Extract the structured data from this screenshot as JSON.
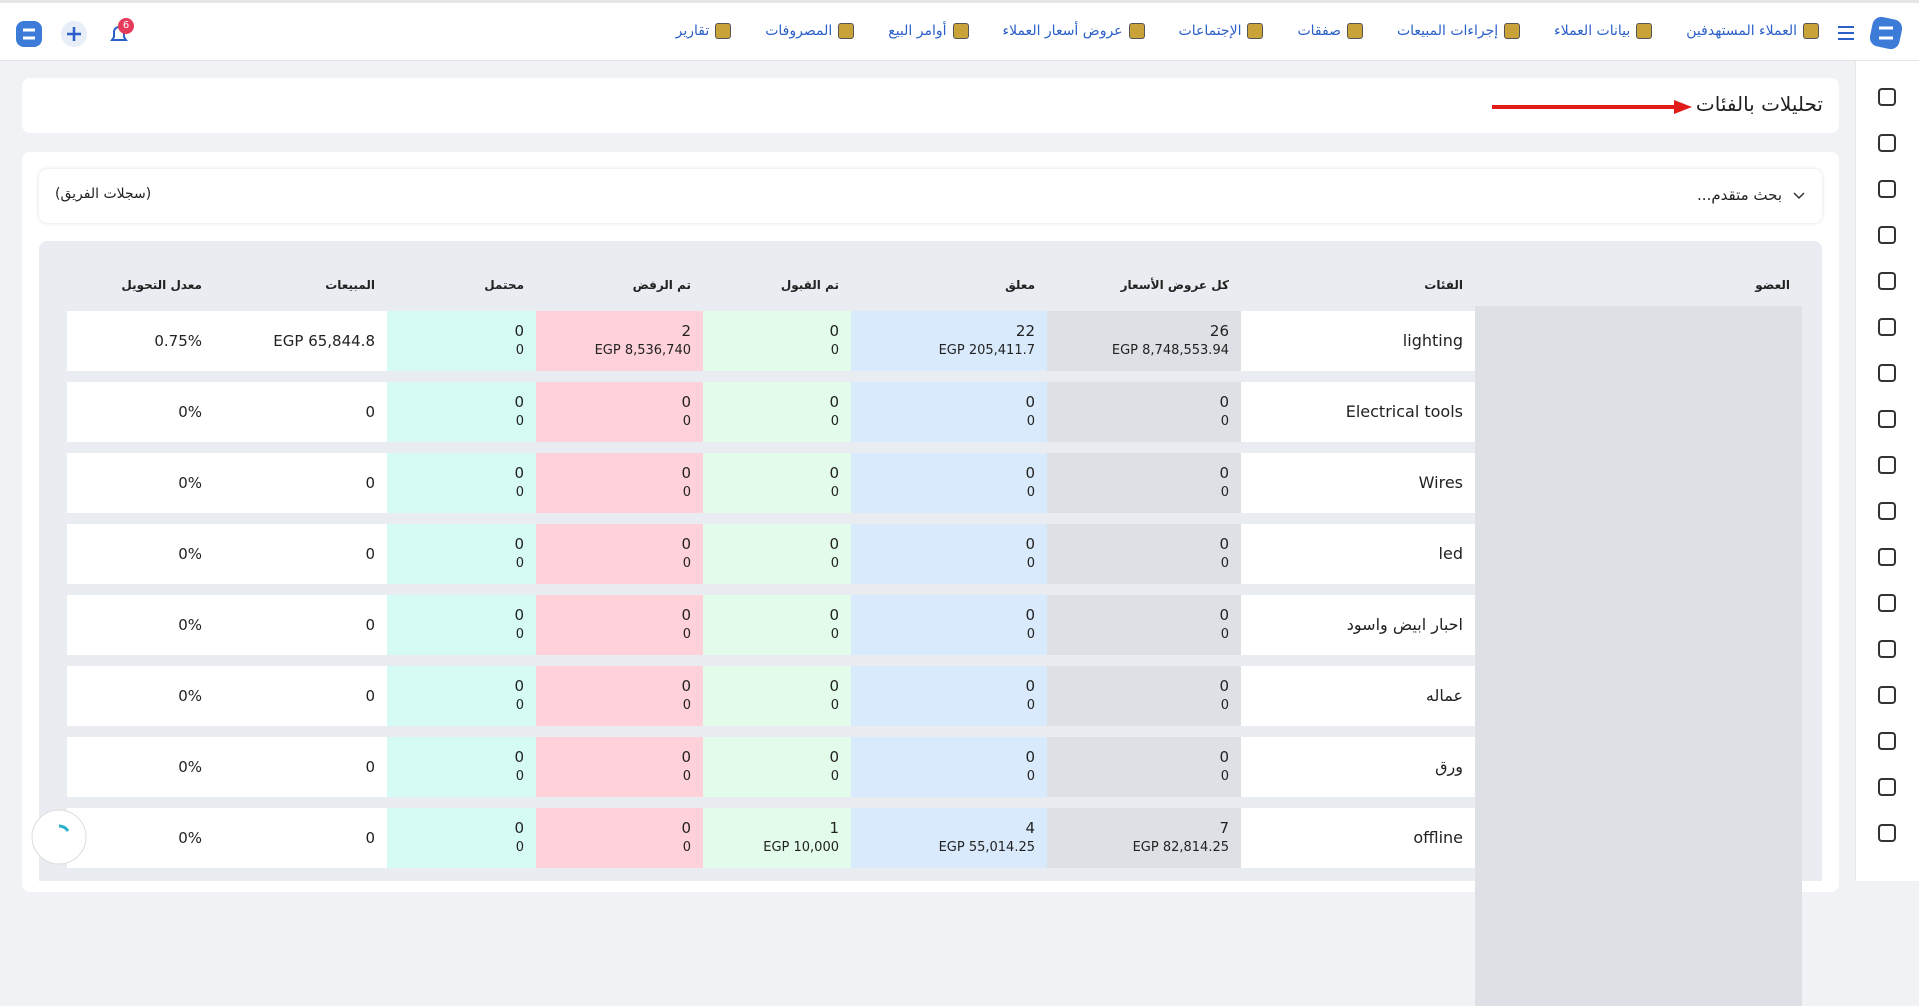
{
  "nav": {
    "items": [
      "العملاء المستهدفين",
      "بيانات العملاء",
      "إجراءات المبيعات",
      "صفقات",
      "الإجتماعات",
      "عروض أسعار العملاء",
      "أوامر البيع",
      "المصروفات",
      "تقارير"
    ],
    "badge": "6"
  },
  "header": {
    "title": "تحليلات بالفئات"
  },
  "search": {
    "label": "بحث متقدم...",
    "scope": "(سجلات الفريق)"
  },
  "table": {
    "headers": [
      "العضو",
      "الفئات",
      "كل عروض الأسعار",
      "معلق",
      "تم القبول",
      "تم الرفض",
      "محتمل",
      "المبيعات",
      "معدل التحويل"
    ],
    "rows": [
      {
        "category": "lighting",
        "all_quotes": [
          "26",
          "EGP 8,748,553.94"
        ],
        "pending": [
          "22",
          "EGP 205,411.7"
        ],
        "accepted": [
          "0",
          "0"
        ],
        "rejected": [
          "2",
          "EGP 8,536,740"
        ],
        "potential": [
          "0",
          "0"
        ],
        "sales": "EGP 65,844.8",
        "conversion": "0.75%"
      },
      {
        "category": "Electrical tools",
        "all_quotes": [
          "0",
          "0"
        ],
        "pending": [
          "0",
          "0"
        ],
        "accepted": [
          "0",
          "0"
        ],
        "rejected": [
          "0",
          "0"
        ],
        "potential": [
          "0",
          "0"
        ],
        "sales": "0",
        "conversion": "0%"
      },
      {
        "category": "Wires",
        "all_quotes": [
          "0",
          "0"
        ],
        "pending": [
          "0",
          "0"
        ],
        "accepted": [
          "0",
          "0"
        ],
        "rejected": [
          "0",
          "0"
        ],
        "potential": [
          "0",
          "0"
        ],
        "sales": "0",
        "conversion": "0%"
      },
      {
        "category": "led",
        "all_quotes": [
          "0",
          "0"
        ],
        "pending": [
          "0",
          "0"
        ],
        "accepted": [
          "0",
          "0"
        ],
        "rejected": [
          "0",
          "0"
        ],
        "potential": [
          "0",
          "0"
        ],
        "sales": "0",
        "conversion": "0%"
      },
      {
        "category": "احبار ابيض واسود",
        "all_quotes": [
          "0",
          "0"
        ],
        "pending": [
          "0",
          "0"
        ],
        "accepted": [
          "0",
          "0"
        ],
        "rejected": [
          "0",
          "0"
        ],
        "potential": [
          "0",
          "0"
        ],
        "sales": "0",
        "conversion": "0%"
      },
      {
        "category": "عماله",
        "all_quotes": [
          "0",
          "0"
        ],
        "pending": [
          "0",
          "0"
        ],
        "accepted": [
          "0",
          "0"
        ],
        "rejected": [
          "0",
          "0"
        ],
        "potential": [
          "0",
          "0"
        ],
        "sales": "0",
        "conversion": "0%"
      },
      {
        "category": "ورق",
        "all_quotes": [
          "0",
          "0"
        ],
        "pending": [
          "0",
          "0"
        ],
        "accepted": [
          "0",
          "0"
        ],
        "rejected": [
          "0",
          "0"
        ],
        "potential": [
          "0",
          "0"
        ],
        "sales": "0",
        "conversion": "0%"
      },
      {
        "category": "offline",
        "all_quotes": [
          "7",
          "EGP 82,814.25"
        ],
        "pending": [
          "4",
          "EGP 55,014.25"
        ],
        "accepted": [
          "1",
          "EGP 10,000"
        ],
        "rejected": [
          "0",
          "0"
        ],
        "potential": [
          "0",
          "0"
        ],
        "sales": "0",
        "conversion": "0%"
      }
    ]
  }
}
